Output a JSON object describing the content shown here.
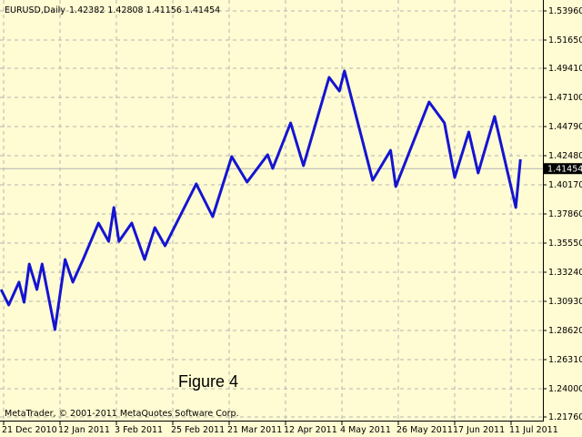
{
  "header": {
    "symbol": "EURUSD,Daily",
    "ohlc": "1.42382 1.42808 1.41156 1.41454"
  },
  "copyright": "MetaTrader, © 2001-2011 MetaQuotes Software Corp.",
  "annotation": "Figure 4",
  "colors": {
    "background": "#fffbd2",
    "line": "#1414d2",
    "grid": "#b4b4b4",
    "price_marker": "#000000"
  },
  "chart_data": {
    "type": "line",
    "title": "",
    "xlabel": "",
    "ylabel": "",
    "grid": true,
    "ylim": [
      1.2176,
      1.5396
    ],
    "current_price": "1.41454",
    "y_ticks": [
      "1.53960",
      "1.51650",
      "1.49410",
      "1.47100",
      "1.44790",
      "1.42480",
      "1.40170",
      "1.37860",
      "1.35550",
      "1.33240",
      "1.30930",
      "1.28620",
      "1.26310",
      "1.24000",
      "1.21760"
    ],
    "x_ticks": [
      {
        "label": "21 Dec 2010",
        "date": "2010-12-21"
      },
      {
        "label": "12 Jan 2011",
        "date": "2011-01-12"
      },
      {
        "label": "3 Feb 2011",
        "date": "2011-02-03"
      },
      {
        "label": "25 Feb 2011",
        "date": "2011-02-25"
      },
      {
        "label": "21 Mar 2011",
        "date": "2011-03-21"
      },
      {
        "label": "12 Apr 2011",
        "date": "2011-04-12"
      },
      {
        "label": "4 May 2011",
        "date": "2011-05-04"
      },
      {
        "label": "26 May 2011",
        "date": "2011-05-26"
      },
      {
        "label": "17 Jun 2011",
        "date": "2011-06-17"
      },
      {
        "label": "11 Jul 2011",
        "date": "2011-07-11"
      }
    ],
    "series": [
      {
        "points": [
          [
            "2010-12-20",
            1.3187
          ],
          [
            "2010-12-23",
            1.3064
          ],
          [
            "2010-12-27",
            1.3245
          ],
          [
            "2010-12-29",
            1.3086
          ],
          [
            "2010-12-31",
            1.3389
          ],
          [
            "2011-01-03",
            1.3187
          ],
          [
            "2011-01-05",
            1.3389
          ],
          [
            "2011-01-10",
            1.2869
          ],
          [
            "2011-01-14",
            1.3425
          ],
          [
            "2011-01-17",
            1.3245
          ],
          [
            "2011-01-21",
            1.3425
          ],
          [
            "2011-01-27",
            1.3714
          ],
          [
            "2011-01-31",
            1.3569
          ],
          [
            "2011-02-02",
            1.3837
          ],
          [
            "2011-02-04",
            1.3569
          ],
          [
            "2011-02-09",
            1.3714
          ],
          [
            "2011-02-14",
            1.3425
          ],
          [
            "2011-02-18",
            1.3678
          ],
          [
            "2011-02-22",
            1.3533
          ],
          [
            "2011-03-07",
            1.4024
          ],
          [
            "2011-03-14",
            1.3764
          ],
          [
            "2011-03-22",
            1.4241
          ],
          [
            "2011-03-28",
            1.4039
          ],
          [
            "2011-04-05",
            1.4255
          ],
          [
            "2011-04-07",
            1.4147
          ],
          [
            "2011-04-14",
            1.4508
          ],
          [
            "2011-04-19",
            1.4169
          ],
          [
            "2011-04-29",
            1.4869
          ],
          [
            "2011-05-03",
            1.4761
          ],
          [
            "2011-05-05",
            1.492
          ],
          [
            "2011-05-16",
            1.4053
          ],
          [
            "2011-05-23",
            1.4291
          ],
          [
            "2011-05-25",
            1.4003
          ],
          [
            "2011-06-07",
            1.4674
          ],
          [
            "2011-06-13",
            1.4508
          ],
          [
            "2011-06-17",
            1.4075
          ],
          [
            "2011-06-23",
            1.4436
          ],
          [
            "2011-06-27",
            1.4111
          ],
          [
            "2011-07-04",
            1.4559
          ],
          [
            "2011-07-13",
            1.3837
          ],
          [
            "2011-07-15",
            1.4219
          ]
        ]
      }
    ]
  }
}
